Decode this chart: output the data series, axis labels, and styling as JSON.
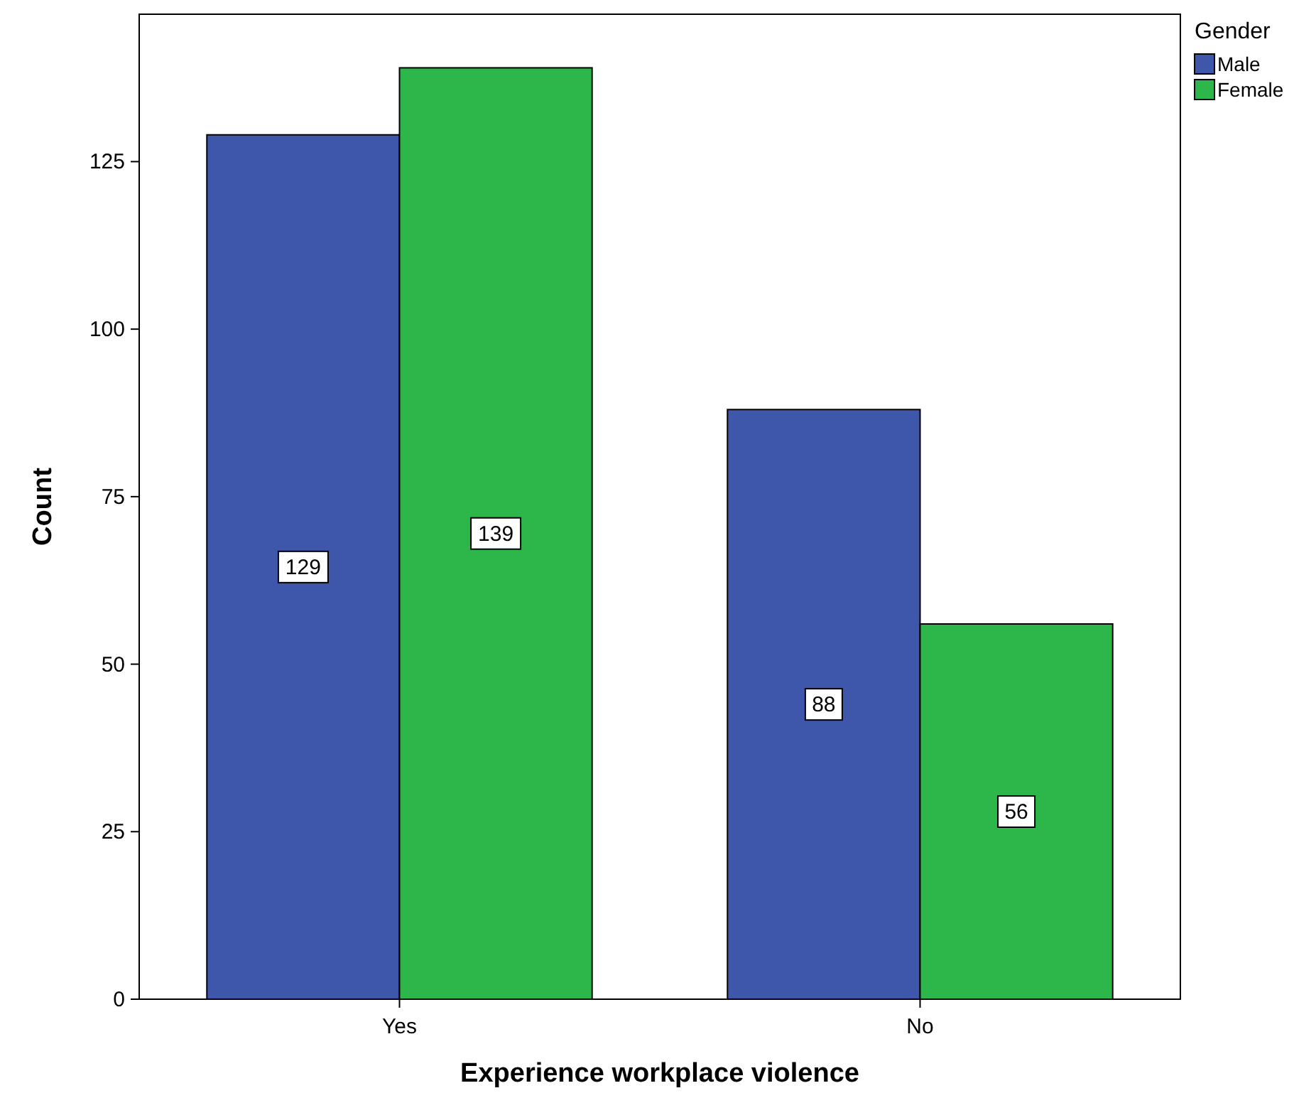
{
  "chart_data": {
    "type": "bar",
    "xlabel": "Experience workplace violence",
    "ylabel": "Count",
    "legend_title": "Gender",
    "categories": [
      "Yes",
      "No"
    ],
    "series": [
      {
        "name": "Male",
        "color": "#3f57ab",
        "values": [
          129,
          88
        ]
      },
      {
        "name": "Female",
        "color": "#2db74b",
        "values": [
          139,
          56
        ]
      }
    ],
    "ylim": [
      0,
      147
    ],
    "yticks": [
      0,
      25,
      50,
      75,
      100,
      125
    ],
    "grid": false,
    "legend": "top right",
    "data_labels": true
  }
}
